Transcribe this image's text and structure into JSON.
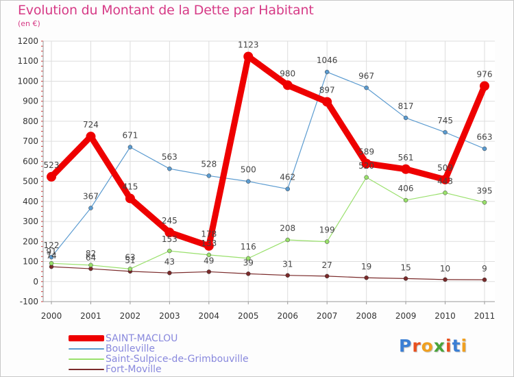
{
  "title": "Evolution du Montant de la Dette par Habitant",
  "unit": "(en €)",
  "logo": "Proxiti",
  "chart_data": {
    "type": "line",
    "x": [
      "2000",
      "2001",
      "2002",
      "2003",
      "2004",
      "2005",
      "2006",
      "2007",
      "2008",
      "2009",
      "2010",
      "2011"
    ],
    "ylim": [
      -100,
      1200
    ],
    "yticks": [
      -100,
      0,
      100,
      200,
      300,
      400,
      500,
      600,
      700,
      800,
      900,
      1000,
      1100,
      1200
    ],
    "grid": true,
    "legend": "bottom-left",
    "series": [
      {
        "name": "SAINT-MACLOU",
        "color": "#ee0000",
        "values": [
          523,
          724,
          415,
          245,
          178,
          1123,
          980,
          897,
          589,
          561,
          509,
          976
        ]
      },
      {
        "name": "Boulleville",
        "color": "#5b9bd0",
        "values": [
          122,
          367,
          671,
          563,
          528,
          500,
          462,
          1046,
          967,
          817,
          745,
          663
        ]
      },
      {
        "name": "Saint-Sulpice-de-Grimbouville",
        "color": "#99e06b",
        "values": [
          91,
          82,
          63,
          153,
          133,
          116,
          208,
          199,
          520,
          406,
          443,
          395
        ]
      },
      {
        "name": "Fort-Moville",
        "color": "#7a2a2a",
        "values": [
          74,
          64,
          51,
          43,
          49,
          39,
          31,
          27,
          19,
          15,
          10,
          9
        ]
      }
    ]
  }
}
